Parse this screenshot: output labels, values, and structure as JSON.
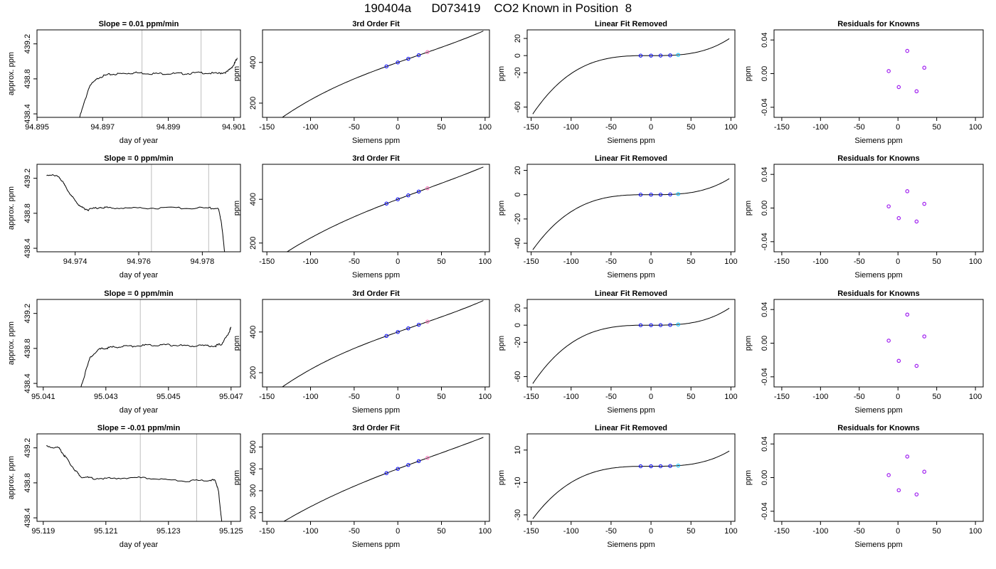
{
  "page": {
    "title": "190404a      D073419    CO2 Known in Position  8"
  },
  "colors": {
    "trace": "#000000",
    "points": "#0000ff",
    "residual_points": "#a020f0",
    "highlight_cyan": "#00bfff",
    "highlight_pink": "#ff69b4",
    "vlines": "#bebebe"
  },
  "chart_data": [
    {
      "type": "line",
      "row": 0,
      "col": 0,
      "title": "Slope =  0.01  ppm/min",
      "xlabel": "day of year",
      "ylabel": "approx. ppm",
      "xlim": [
        94.895,
        94.9012
      ],
      "ylim": [
        438.36,
        439.36
      ],
      "xticks": [
        94.895,
        94.897,
        94.899,
        94.901
      ],
      "xticklabels": [
        "94.895",
        "94.897",
        "94.899",
        "94.901"
      ],
      "yticks": [
        438.4,
        438.8,
        439.2
      ],
      "yticklabels": [
        "438.4",
        "438.8",
        "439.2"
      ],
      "vlines": [
        94.8982,
        94.9
      ],
      "x": [
        94.8963,
        94.8966,
        94.8969,
        94.8972,
        94.8976,
        94.898,
        94.8985,
        94.899,
        94.8995,
        94.9,
        94.9005,
        94.9008,
        94.901,
        94.9011
      ],
      "y": [
        438.36,
        438.72,
        438.82,
        438.85,
        438.86,
        438.87,
        438.86,
        438.86,
        438.86,
        438.87,
        438.86,
        438.88,
        438.96,
        439.04
      ]
    },
    {
      "type": "line",
      "row": 0,
      "col": 1,
      "title": "3rd Order Fit",
      "xlabel": "Siemens ppm",
      "ylabel": "ppm",
      "xlim": [
        -155,
        105
      ],
      "ylim": [
        130,
        560
      ],
      "xticks": [
        -150,
        -100,
        -50,
        0,
        50,
        100
      ],
      "xticklabels": [
        "-150",
        "-100",
        "-50",
        "0",
        "50",
        "100"
      ],
      "yticks": [
        200,
        400
      ],
      "yticklabels": [
        "200",
        "400"
      ],
      "poly": {
        "a": 400,
        "b": 1.5,
        "c": -0.0013,
        "d": 2.1e-05
      },
      "curve_x": [
        -148,
        98
      ],
      "points_x": [
        -13,
        0,
        12,
        24
      ],
      "points_y": [
        380.5,
        400,
        417.8,
        435.5
      ],
      "highlight_x": 34,
      "highlight_y": 450.9
    },
    {
      "type": "line",
      "row": 0,
      "col": 2,
      "title": "Linear Fit Removed",
      "xlabel": "Siemens ppm",
      "ylabel": "ppm",
      "xlim": [
        -155,
        105
      ],
      "ylim": [
        -72,
        30
      ],
      "xticks": [
        -150,
        -100,
        -50,
        0,
        50,
        100
      ],
      "xticklabels": [
        "-150",
        "-100",
        "-50",
        "0",
        "50",
        "100"
      ],
      "yticks": [
        -60,
        -20,
        0,
        20
      ],
      "yticklabels": [
        "-60",
        "-20",
        "0",
        "20"
      ],
      "poly": {
        "a": 0,
        "b": 0,
        "c": 0,
        "d": 2.1e-05
      },
      "curve_x": [
        -148,
        98
      ],
      "points_x": [
        -13,
        0,
        12,
        24
      ],
      "points_y": [
        -0.05,
        0,
        0.04,
        0.29
      ],
      "highlight_x": 34,
      "highlight_y": 0.82
    },
    {
      "type": "scatter",
      "row": 0,
      "col": 3,
      "title": "Residuals for Knowns",
      "xlabel": "Siemens ppm",
      "ylabel": "ppm",
      "xlim": [
        -160,
        110
      ],
      "ylim": [
        -0.052,
        0.052
      ],
      "xticks": [
        -150,
        -100,
        -50,
        0,
        50,
        100
      ],
      "xticklabels": [
        "-150",
        "-100",
        "-50",
        "0",
        "50",
        "100"
      ],
      "yticks": [
        -0.04,
        0,
        0.04
      ],
      "yticklabels": [
        "-0.04",
        "0.00",
        "0.04"
      ],
      "x": [
        -12,
        1,
        12,
        24,
        34
      ],
      "y": [
        0.003,
        -0.016,
        0.027,
        -0.021,
        0.007
      ]
    },
    {
      "type": "line",
      "row": 1,
      "col": 0,
      "title": "Slope =  0  ppm/min",
      "xlabel": "day of year",
      "ylabel": "approx. ppm",
      "xlim": [
        94.9728,
        94.9792
      ],
      "ylim": [
        438.36,
        439.36
      ],
      "xticks": [
        94.974,
        94.976,
        94.978
      ],
      "xticklabels": [
        "94.974",
        "94.976",
        "94.978"
      ],
      "yticks": [
        438.4,
        438.8,
        439.2
      ],
      "yticklabels": [
        "438.4",
        "438.8",
        "439.2"
      ],
      "vlines": [
        94.9764,
        94.9782
      ],
      "x": [
        94.9731,
        94.9735,
        94.9737,
        94.974,
        94.9742,
        94.9744,
        94.9748,
        94.9752,
        94.976,
        94.977,
        94.978,
        94.9785,
        94.9786,
        94.9787
      ],
      "y": [
        439.24,
        439.22,
        439.1,
        438.94,
        438.87,
        438.84,
        438.87,
        438.86,
        438.86,
        438.86,
        438.86,
        438.86,
        438.7,
        438.36
      ]
    },
    {
      "type": "line",
      "row": 1,
      "col": 1,
      "title": "3rd Order Fit",
      "xlabel": "Siemens ppm",
      "ylabel": "ppm",
      "xlim": [
        -155,
        105
      ],
      "ylim": [
        160,
        560
      ],
      "xticks": [
        -150,
        -100,
        -50,
        0,
        50,
        100
      ],
      "xticklabels": [
        "-150",
        "-100",
        "-50",
        "0",
        "50",
        "100"
      ],
      "yticks": [
        200,
        400
      ],
      "yticklabels": [
        "200",
        "400"
      ],
      "poly": {
        "a": 400,
        "b": 1.5,
        "c": -0.0013,
        "d": 1.4e-05
      },
      "curve_x": [
        -148,
        98
      ],
      "points_x": [
        -13,
        0,
        12,
        24
      ],
      "points_y": [
        380.5,
        400,
        417.8,
        435.5
      ],
      "highlight_x": 34,
      "highlight_y": 450.5
    },
    {
      "type": "line",
      "row": 1,
      "col": 2,
      "title": "Linear Fit Removed",
      "xlabel": "Siemens ppm",
      "ylabel": "ppm",
      "xlim": [
        -155,
        105
      ],
      "ylim": [
        -47,
        25
      ],
      "xticks": [
        -150,
        -100,
        -50,
        0,
        50,
        100
      ],
      "xticklabels": [
        "-150",
        "-100",
        "-50",
        "0",
        "50",
        "100"
      ],
      "yticks": [
        -40,
        -20,
        0,
        20
      ],
      "yticklabels": [
        "-40",
        "-20",
        "0",
        "20"
      ],
      "poly": {
        "a": 0,
        "b": 0,
        "c": 0,
        "d": 1.4e-05
      },
      "curve_x": [
        -148,
        98
      ],
      "points_x": [
        -13,
        0,
        12,
        24
      ],
      "points_y": [
        -0.03,
        0,
        0.02,
        0.19
      ],
      "highlight_x": 34,
      "highlight_y": 0.55
    },
    {
      "type": "scatter",
      "row": 1,
      "col": 3,
      "title": "Residuals for Knowns",
      "xlabel": "Siemens ppm",
      "ylabel": "ppm",
      "xlim": [
        -160,
        110
      ],
      "ylim": [
        -0.052,
        0.052
      ],
      "xticks": [
        -150,
        -100,
        -50,
        0,
        50,
        100
      ],
      "xticklabels": [
        "-150",
        "-100",
        "-50",
        "0",
        "50",
        "100"
      ],
      "yticks": [
        -0.04,
        0,
        0.04
      ],
      "yticklabels": [
        "-0.04",
        "0.00",
        "0.04"
      ],
      "x": [
        -12,
        1,
        12,
        24,
        34
      ],
      "y": [
        0.002,
        -0.012,
        0.02,
        -0.016,
        0.005
      ]
    },
    {
      "type": "line",
      "row": 2,
      "col": 0,
      "title": "Slope =  0  ppm/min",
      "xlabel": "day of year",
      "ylabel": "approx. ppm",
      "xlim": [
        95.0408,
        95.0473
      ],
      "ylim": [
        438.36,
        439.36
      ],
      "xticks": [
        95.041,
        95.043,
        95.045,
        95.047
      ],
      "xticklabels": [
        "95.041",
        "95.043",
        "95.045",
        "95.047"
      ],
      "yticks": [
        438.4,
        438.8,
        439.2
      ],
      "yticklabels": [
        "438.4",
        "438.8",
        "439.2"
      ],
      "vlines": [
        95.0441,
        95.0459
      ],
      "x": [
        95.0422,
        95.0425,
        95.0428,
        95.0431,
        95.0435,
        95.044,
        95.0445,
        95.045,
        95.0455,
        95.046,
        95.0465,
        95.0467,
        95.0469,
        95.047
      ],
      "y": [
        438.36,
        438.7,
        438.79,
        438.81,
        438.82,
        438.83,
        438.84,
        438.84,
        438.83,
        438.83,
        438.83,
        438.85,
        438.96,
        439.04
      ]
    },
    {
      "type": "line",
      "row": 2,
      "col": 1,
      "title": "3rd Order Fit",
      "xlabel": "Siemens ppm",
      "ylabel": "ppm",
      "xlim": [
        -155,
        105
      ],
      "ylim": [
        130,
        560
      ],
      "xticks": [
        -150,
        -100,
        -50,
        0,
        50,
        100
      ],
      "xticklabels": [
        "-150",
        "-100",
        "-50",
        "0",
        "50",
        "100"
      ],
      "yticks": [
        200,
        400
      ],
      "yticklabels": [
        "200",
        "400"
      ],
      "poly": {
        "a": 400,
        "b": 1.5,
        "c": -0.0013,
        "d": 2.1e-05
      },
      "curve_x": [
        -148,
        98
      ],
      "points_x": [
        -13,
        0,
        12,
        24
      ],
      "points_y": [
        380.5,
        400,
        417.8,
        435.5
      ],
      "highlight_x": 34,
      "highlight_y": 450.9
    },
    {
      "type": "line",
      "row": 2,
      "col": 2,
      "title": "Linear Fit Removed",
      "xlabel": "Siemens ppm",
      "ylabel": "ppm",
      "xlim": [
        -155,
        105
      ],
      "ylim": [
        -72,
        30
      ],
      "xticks": [
        -150,
        -100,
        -50,
        0,
        50,
        100
      ],
      "xticklabels": [
        "-150",
        "-100",
        "-50",
        "0",
        "50",
        "100"
      ],
      "yticks": [
        -60,
        -20,
        0,
        20
      ],
      "yticklabels": [
        "-60",
        "-20",
        "0",
        "20"
      ],
      "poly": {
        "a": 0,
        "b": 0,
        "c": 0,
        "d": 2.1e-05
      },
      "curve_x": [
        -148,
        98
      ],
      "points_x": [
        -13,
        0,
        12,
        24
      ],
      "points_y": [
        -0.05,
        0,
        0.04,
        0.29
      ],
      "highlight_x": 34,
      "highlight_y": 0.82
    },
    {
      "type": "scatter",
      "row": 2,
      "col": 3,
      "title": "Residuals for Knowns",
      "xlabel": "Siemens ppm",
      "ylabel": "ppm",
      "xlim": [
        -160,
        110
      ],
      "ylim": [
        -0.052,
        0.052
      ],
      "xticks": [
        -150,
        -100,
        -50,
        0,
        50,
        100
      ],
      "xticklabels": [
        "-150",
        "-100",
        "-50",
        "0",
        "50",
        "100"
      ],
      "yticks": [
        -0.04,
        0,
        0.04
      ],
      "yticklabels": [
        "-0.04",
        "0.00",
        "0.04"
      ],
      "x": [
        -12,
        1,
        12,
        24,
        34
      ],
      "y": [
        0.003,
        -0.021,
        0.034,
        -0.027,
        0.008
      ]
    },
    {
      "type": "line",
      "row": 3,
      "col": 0,
      "title": "Slope =  -0.01  ppm/min",
      "xlabel": "day of year",
      "ylabel": "approx. ppm",
      "xlim": [
        95.1188,
        95.1253
      ],
      "ylim": [
        438.36,
        439.36
      ],
      "xticks": [
        95.119,
        95.121,
        95.123,
        95.125
      ],
      "xticklabels": [
        "95.119",
        "95.121",
        "95.123",
        "95.125"
      ],
      "yticks": [
        438.4,
        438.8,
        439.2
      ],
      "yticklabels": [
        "438.4",
        "438.8",
        "439.2"
      ],
      "vlines": [
        95.1221,
        95.1239
      ],
      "x": [
        95.1191,
        95.1195,
        95.1197,
        95.12,
        95.1202,
        95.1206,
        95.1212,
        95.122,
        95.1228,
        95.1236,
        95.1243,
        95.1245,
        95.1246,
        95.1247
      ],
      "y": [
        439.22,
        439.2,
        439.1,
        438.95,
        438.87,
        438.85,
        438.85,
        438.86,
        438.84,
        438.82,
        438.83,
        438.83,
        438.7,
        438.36
      ]
    },
    {
      "type": "line",
      "row": 3,
      "col": 1,
      "title": "3rd Order Fit",
      "xlabel": "Siemens ppm",
      "ylabel": "ppm",
      "xlim": [
        -155,
        105
      ],
      "ylim": [
        160,
        560
      ],
      "xticks": [
        -150,
        -100,
        -50,
        0,
        50,
        100
      ],
      "xticklabels": [
        "-150",
        "-100",
        "-50",
        "0",
        "50",
        "100"
      ],
      "yticks": [
        200,
        300,
        400,
        500
      ],
      "yticklabels": [
        "200",
        "300",
        "400",
        "500"
      ],
      "poly": {
        "a": 400,
        "b": 1.5,
        "c": -0.0013,
        "d": 1e-05
      },
      "curve_x": [
        -148,
        98
      ],
      "points_x": [
        -13,
        0,
        12,
        24
      ],
      "points_y": [
        380.5,
        400,
        417.8,
        435.5
      ],
      "highlight_x": 34,
      "highlight_y": 450.4
    },
    {
      "type": "line",
      "row": 3,
      "col": 2,
      "title": "Linear Fit Removed",
      "xlabel": "Siemens ppm",
      "ylabel": "ppm",
      "xlim": [
        -155,
        105
      ],
      "ylim": [
        -34,
        20
      ],
      "xticks": [
        -150,
        -100,
        -50,
        0,
        50,
        100
      ],
      "xticklabels": [
        "-150",
        "-100",
        "-50",
        "0",
        "50",
        "100"
      ],
      "yticks": [
        -30,
        -10,
        10
      ],
      "yticklabels": [
        "-30",
        "-10",
        "10"
      ],
      "poly": {
        "a": 0,
        "b": 0,
        "c": 0,
        "d": 1e-05
      },
      "curve_x": [
        -148,
        98
      ],
      "points_x": [
        -13,
        0,
        12,
        24
      ],
      "points_y": [
        -0.02,
        0,
        0.02,
        0.14
      ],
      "highlight_x": 34,
      "highlight_y": 0.4
    },
    {
      "type": "scatter",
      "row": 3,
      "col": 3,
      "title": "Residuals for Knowns",
      "xlabel": "Siemens ppm",
      "ylabel": "ppm",
      "xlim": [
        -160,
        110
      ],
      "ylim": [
        -0.052,
        0.052
      ],
      "xticks": [
        -150,
        -100,
        -50,
        0,
        50,
        100
      ],
      "xticklabels": [
        "-150",
        "-100",
        "-50",
        "0",
        "50",
        "100"
      ],
      "yticks": [
        -0.04,
        0,
        0.04
      ],
      "yticklabels": [
        "-0.04",
        "0.00",
        "0.04"
      ],
      "x": [
        -12,
        1,
        12,
        24,
        34
      ],
      "y": [
        0.003,
        -0.015,
        0.025,
        -0.02,
        0.007
      ]
    }
  ]
}
